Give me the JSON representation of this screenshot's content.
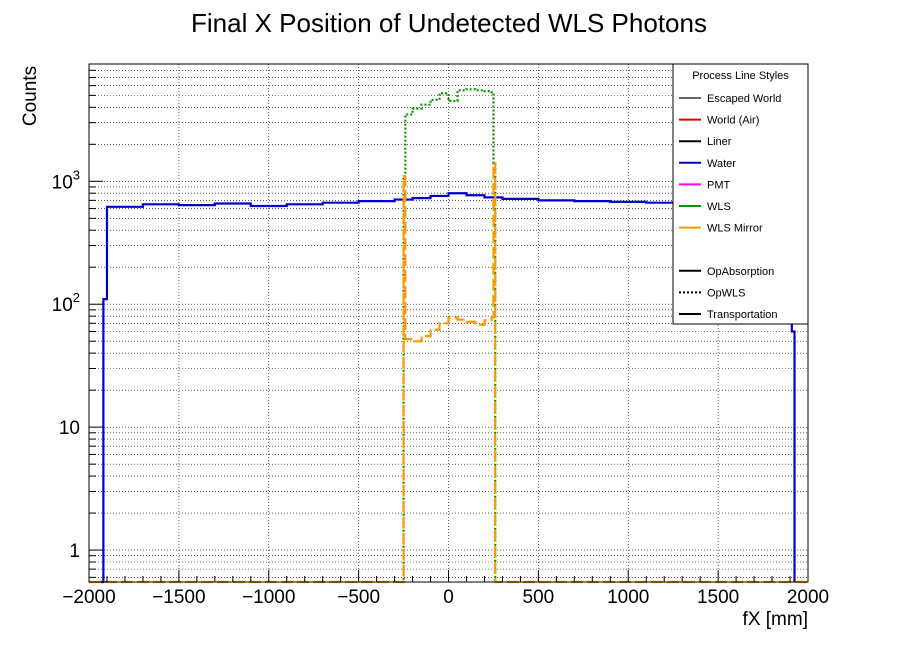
{
  "chart_data": {
    "type": "line",
    "title": "Final X Position of Undetected WLS Photons",
    "xlabel": "fX [mm]",
    "ylabel": "Counts",
    "xlim": [
      -2000,
      2000
    ],
    "ylim": [
      0.55,
      9000
    ],
    "yscale": "log",
    "grid": true,
    "x_ticks": [
      -2000,
      -1500,
      -1000,
      -500,
      0,
      500,
      1000,
      1500,
      2000
    ],
    "x_tick_labels": [
      "−2000",
      "−1500",
      "−1000",
      "−500",
      "0",
      "500",
      "1000",
      "1500",
      "2000"
    ],
    "y_ticks": [
      {
        "value": 1,
        "base": "1",
        "exp": ""
      },
      {
        "value": 10,
        "base": "10",
        "exp": ""
      },
      {
        "value": 100,
        "base": "10",
        "exp": "2"
      },
      {
        "value": 1000,
        "base": "10",
        "exp": "3"
      }
    ],
    "legend": {
      "title": "Process Line Styles",
      "position": "top-right",
      "colors": [
        {
          "label": "Escaped World",
          "color": "#666666"
        },
        {
          "label": "World (Air)",
          "color": "#e00000"
        },
        {
          "label": "Liner",
          "color": "#000000"
        },
        {
          "label": "Water",
          "color": "#0000cc"
        },
        {
          "label": "PMT",
          "color": "#ff00ff"
        },
        {
          "label": "WLS",
          "color": "#009900"
        },
        {
          "label": "WLS Mirror",
          "color": "#ff9900"
        }
      ],
      "styles": [
        {
          "label": "OpAbsorption",
          "dash": "solid"
        },
        {
          "label": "OpWLS",
          "dash": "dotted"
        },
        {
          "label": "Transportation",
          "dash": "solid"
        }
      ]
    },
    "series": [
      {
        "name": "Water",
        "color": "#0000cc",
        "dash": "solid",
        "x": [
          -1940,
          -1920,
          -1900,
          -1700,
          -1500,
          -1300,
          -1100,
          -900,
          -700,
          -500,
          -300,
          -200,
          -100,
          0,
          100,
          200,
          300,
          500,
          700,
          900,
          1100,
          1300,
          1500,
          1700,
          1890,
          1910,
          1925
        ],
        "y": [
          0.55,
          110,
          620,
          650,
          640,
          660,
          630,
          650,
          670,
          690,
          710,
          730,
          760,
          800,
          770,
          740,
          720,
          700,
          690,
          680,
          670,
          680,
          660,
          650,
          640,
          60,
          0.55
        ]
      },
      {
        "name": "WLS",
        "color": "#009900",
        "dash": "dotted",
        "x": [
          -260,
          -250,
          -240,
          -200,
          -150,
          -100,
          -50,
          0,
          50,
          100,
          150,
          200,
          240,
          250,
          260
        ],
        "y": [
          0.55,
          1100,
          3500,
          3900,
          4200,
          4600,
          5200,
          4500,
          5500,
          5600,
          5500,
          5400,
          5300,
          1400,
          0.55
        ]
      },
      {
        "name": "WLS Mirror",
        "color": "#ff9900",
        "dash": "dashed",
        "x": [
          -2000,
          -260,
          -250,
          -240,
          -200,
          -150,
          -100,
          -50,
          0,
          50,
          100,
          150,
          200,
          240,
          250,
          260,
          2000
        ],
        "y": [
          0.55,
          0.55,
          1100,
          52,
          50,
          55,
          62,
          70,
          78,
          75,
          72,
          68,
          74,
          78,
          1400,
          0.55,
          0.55
        ]
      }
    ]
  }
}
